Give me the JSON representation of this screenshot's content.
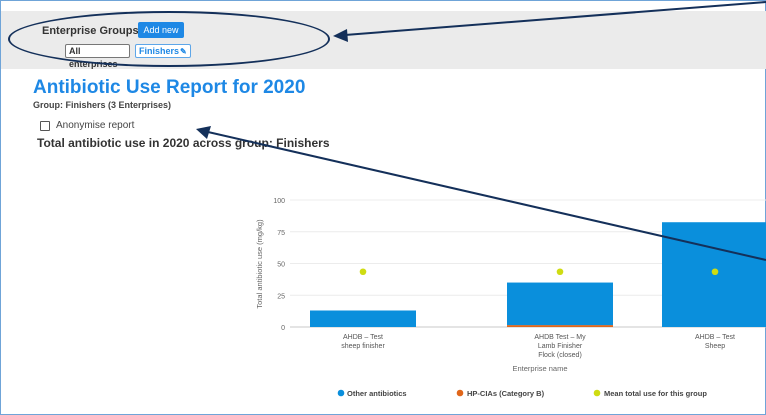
{
  "enterprise_groups": {
    "title": "Enterprise Groups",
    "add_new_label": "Add new",
    "pills": [
      {
        "label": "All enterprises"
      },
      {
        "label": "Finishers"
      }
    ]
  },
  "report": {
    "title": "Antibiotic Use Report for 2020",
    "group_line": "Group: Finishers (3 Enterprises)",
    "anonymise_label": "Anonymise report",
    "total_heading": "Total antibiotic use in 2020 across group: Finishers"
  },
  "colors": {
    "accent": "#1e88e5",
    "other_antibiotics": "#0a8fdc",
    "hp_cias": "#e0661a",
    "mean": "#cfdc12",
    "annotation": "#14305a"
  },
  "chart_data": {
    "type": "bar",
    "categories": [
      [
        "AHDB – Test",
        "sheep finisher"
      ],
      [
        "AHDB Test – My",
        "Lamb Finisher",
        "Flock (closed)"
      ],
      [
        "AHDB – Test",
        "Sheep"
      ]
    ],
    "series": [
      {
        "name": "Other antibiotics",
        "values": [
          13,
          33.5,
          82.5
        ]
      },
      {
        "name": "HP-CIAs (Category B)",
        "values": [
          0,
          1.5,
          0
        ]
      },
      {
        "name": "Mean total use for this group",
        "values": [
          43.5,
          43.5,
          43.5
        ]
      }
    ],
    "xlabel": "Enterprise name",
    "ylabel": "Total antibiotic use (mg/kg)",
    "ylim": [
      0,
      100
    ],
    "yticks": [
      "0",
      "25",
      "50",
      "75",
      "100"
    ],
    "grid": true,
    "legend_position": "bottom"
  }
}
